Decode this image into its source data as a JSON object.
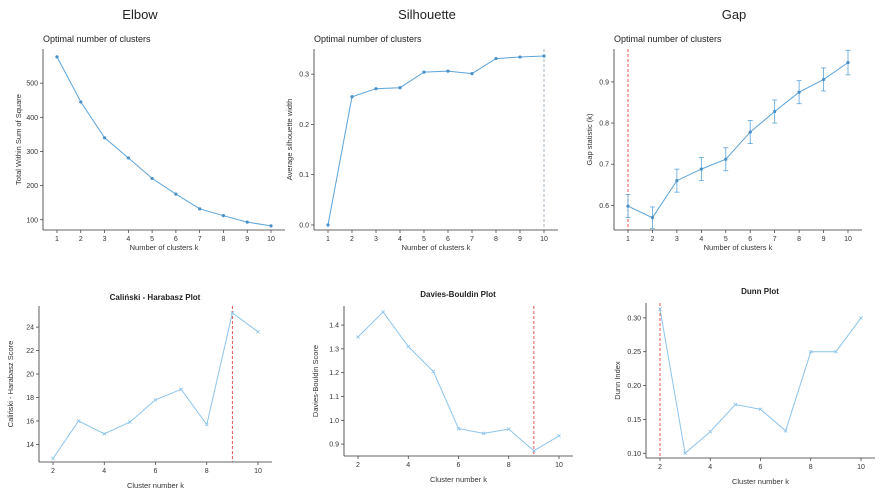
{
  "section_titles": {
    "elbow": "Elbow",
    "silhouette": "Silhouette",
    "gap": "Gap"
  },
  "colors": {
    "line": "#5ba3d9",
    "marker_top": "#4a90c8",
    "marker_bottom": "#8cc4ec",
    "optimal_line": "#e0443e",
    "optimal_line_gap": "#e8a0a0",
    "axis": "#333333"
  },
  "chart_data": [
    {
      "id": "elbow",
      "type": "line",
      "title": "Optimal number of clusters",
      "xlabel": "Number of clusters k",
      "ylabel": "Total Within Sum of Square",
      "x": [
        1,
        2,
        3,
        4,
        5,
        6,
        7,
        8,
        9,
        10
      ],
      "xticks": [
        "1",
        "2",
        "3",
        "4",
        "5",
        "6",
        "7",
        "8",
        "9",
        "10"
      ],
      "values": [
        577,
        445,
        340,
        281,
        221,
        175,
        132,
        112,
        93,
        82
      ],
      "ylim": [
        70,
        600
      ],
      "yticks": [
        100,
        200,
        300,
        400,
        500
      ],
      "ytick_labels": [
        "100",
        "200",
        "300",
        "400",
        "500"
      ]
    },
    {
      "id": "silhouette",
      "type": "line",
      "title": "Optimal number of clusters",
      "xlabel": "Number of clusters k",
      "ylabel": "Average silhouette width",
      "x": [
        1,
        2,
        3,
        4,
        5,
        6,
        7,
        8,
        9,
        10
      ],
      "xticks": [
        "1",
        "2",
        "3",
        "4",
        "5",
        "6",
        "7",
        "8",
        "9",
        "10"
      ],
      "values": [
        0.0,
        0.255,
        0.271,
        0.273,
        0.304,
        0.306,
        0.301,
        0.331,
        0.334,
        0.336
      ],
      "ylim": [
        -0.01,
        0.35
      ],
      "yticks": [
        0.0,
        0.1,
        0.2,
        0.3
      ],
      "ytick_labels": [
        "0.0",
        "0.1",
        "0.2",
        "0.3"
      ],
      "optimal_k": 10
    },
    {
      "id": "gap",
      "type": "line",
      "title": "Optimal number of clusters",
      "xlabel": "Number of clusters k",
      "ylabel": "Gap statistic (k)",
      "x": [
        1,
        2,
        3,
        4,
        5,
        6,
        7,
        8,
        9,
        10
      ],
      "xticks": [
        "1",
        "2",
        "3",
        "4",
        "5",
        "6",
        "7",
        "8",
        "9",
        "10"
      ],
      "values": [
        0.598,
        0.57,
        0.66,
        0.688,
        0.712,
        0.778,
        0.828,
        0.875,
        0.906,
        0.947
      ],
      "error": [
        0.028,
        0.026,
        0.028,
        0.028,
        0.028,
        0.028,
        0.028,
        0.028,
        0.028,
        0.03
      ],
      "ylim": [
        0.54,
        0.98
      ],
      "yticks": [
        0.6,
        0.7,
        0.8,
        0.9
      ],
      "ytick_labels": [
        "0.6",
        "0.7",
        "0.8",
        "0.9"
      ],
      "optimal_k": 1
    },
    {
      "id": "calinski",
      "type": "line",
      "title": "Caliński - Harabasz Plot",
      "xlabel": "Cluster number k",
      "ylabel": "Caliński - Harabasz Score",
      "x": [
        2,
        3,
        4,
        5,
        6,
        7,
        8,
        9,
        10
      ],
      "xticks": [
        "2",
        "4",
        "6",
        "8",
        "10"
      ],
      "xtick_values": [
        2,
        4,
        6,
        8,
        10
      ],
      "values": [
        12.8,
        16.0,
        14.9,
        15.9,
        17.8,
        18.7,
        15.7,
        25.2,
        23.6
      ],
      "ylim": [
        12.5,
        25.8
      ],
      "yticks": [
        14,
        16,
        18,
        20,
        22,
        24
      ],
      "ytick_labels": [
        "14",
        "16",
        "18",
        "20",
        "22",
        "24"
      ],
      "optimal_k": 9
    },
    {
      "id": "davies",
      "type": "line",
      "title": "Davies-Bouldin Plot",
      "xlabel": "Cluster number k",
      "ylabel": "Davies-Bouldin Score",
      "x": [
        2,
        3,
        4,
        5,
        6,
        7,
        8,
        9,
        10
      ],
      "xticks": [
        "2",
        "4",
        "6",
        "8",
        "10"
      ],
      "xtick_values": [
        2,
        4,
        6,
        8,
        10
      ],
      "values": [
        1.35,
        1.455,
        1.31,
        1.205,
        0.965,
        0.945,
        0.963,
        0.872,
        0.935
      ],
      "ylim": [
        0.85,
        1.48
      ],
      "yticks": [
        0.9,
        1.0,
        1.1,
        1.2,
        1.3,
        1.4
      ],
      "ytick_labels": [
        "0.9",
        "1.0",
        "1.1",
        "1.2",
        "1.3",
        "1.4"
      ],
      "optimal_k": 9
    },
    {
      "id": "dunn",
      "type": "line",
      "title": "Dunn Plot",
      "xlabel": "Cluster number k",
      "ylabel": "Dunn Index",
      "x": [
        2,
        3,
        4,
        5,
        6,
        7,
        8,
        9,
        10
      ],
      "xticks": [
        "2",
        "4",
        "6",
        "8",
        "10"
      ],
      "xtick_values": [
        2,
        4,
        6,
        8,
        10
      ],
      "values": [
        0.313,
        0.1,
        0.132,
        0.172,
        0.165,
        0.133,
        0.25,
        0.25,
        0.3
      ],
      "ylim": [
        0.093,
        0.322
      ],
      "yticks": [
        0.1,
        0.15,
        0.2,
        0.25,
        0.3
      ],
      "ytick_labels": [
        "0.10",
        "0.15",
        "0.20",
        "0.25",
        "0.30"
      ],
      "optimal_k": 2
    }
  ]
}
